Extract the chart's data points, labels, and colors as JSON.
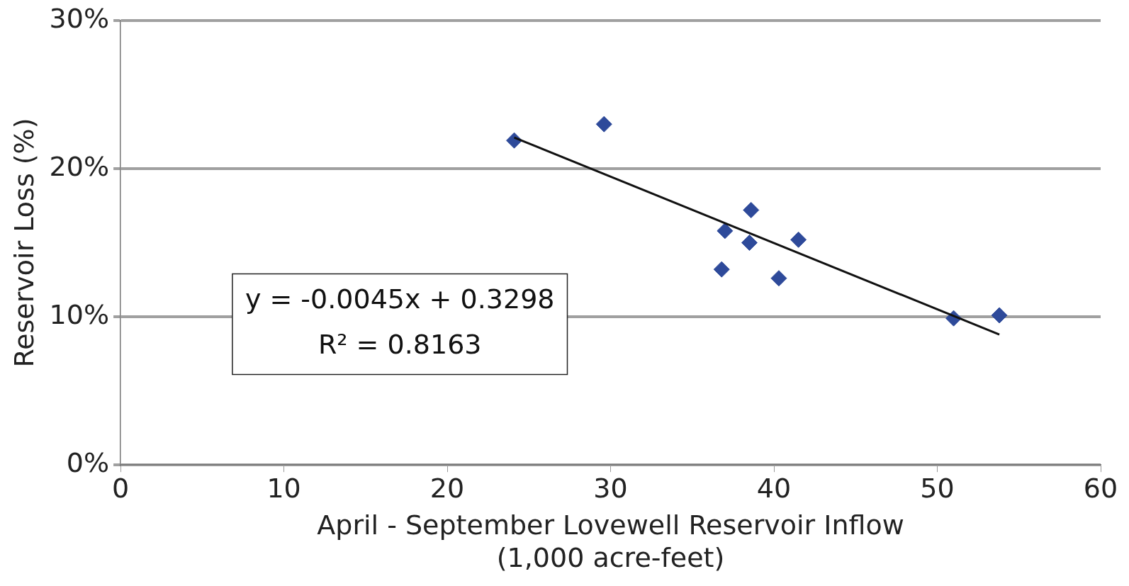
{
  "chart_data": {
    "type": "scatter",
    "xlabel": "April - September Lovewell Reservoir Inflow\n(1,000 acre-feet)",
    "ylabel": "Reservoir Loss (%)",
    "xlim": [
      0,
      60
    ],
    "xticks": [
      0,
      10,
      20,
      30,
      40,
      50,
      60
    ],
    "ylim": [
      0,
      30
    ],
    "yticks": [
      {
        "value": 0,
        "label": "0%"
      },
      {
        "value": 10,
        "label": "10%"
      },
      {
        "value": 20,
        "label": "20%"
      },
      {
        "value": 30,
        "label": "30%"
      }
    ],
    "grid": "y",
    "legend": false,
    "series": [
      {
        "marker": "diamond",
        "color": "#2e4a9a",
        "x": [
          24.1,
          29.6,
          38.6,
          37.0,
          38.5,
          41.5,
          36.8,
          40.3,
          51.0,
          53.8
        ],
        "values": [
          21.9,
          23.0,
          17.2,
          15.8,
          15.0,
          15.2,
          13.2,
          12.6,
          9.9,
          10.1
        ]
      },
      {
        "type": "line",
        "color": "#111111",
        "x": [
          24.1,
          53.8
        ],
        "values": [
          22.1,
          8.8
        ]
      }
    ],
    "annotations": [
      "y = -0.0045x + 0.3298",
      "R² = 0.8163"
    ]
  }
}
